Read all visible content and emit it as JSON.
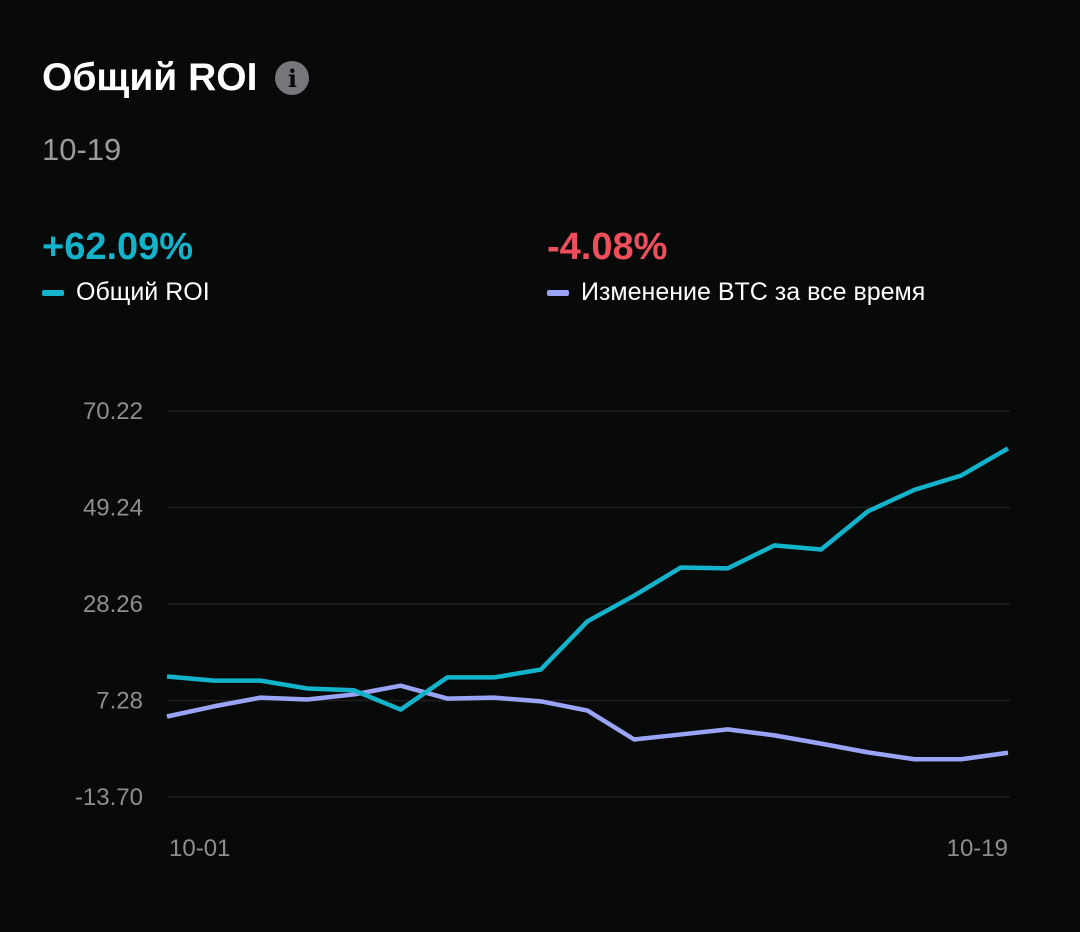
{
  "header": {
    "title": "Общий ROI",
    "info_icon": "info-icon",
    "date": "10-19"
  },
  "stats": [
    {
      "value": "+62.09%",
      "label": "Общий ROI",
      "color": "#13b4cb"
    },
    {
      "value": "-4.08%",
      "label": "Изменение BTC за все время",
      "color": "#ef4f5c"
    }
  ],
  "chart_data": {
    "type": "line",
    "title": "Общий ROI",
    "xlabel": "",
    "ylabel": "",
    "x_tick_labels": [
      "10-01",
      "10-19"
    ],
    "y_ticks": [
      "70.22",
      "49.24",
      "28.26",
      "7.28",
      "-13.70"
    ],
    "ylim": [
      -13.7,
      70.22
    ],
    "grid": true,
    "x": [
      "10-01",
      "10-02",
      "10-03",
      "10-04",
      "10-05",
      "10-06",
      "10-07",
      "10-08",
      "10-09",
      "10-10",
      "10-11",
      "10-12",
      "10-13",
      "10-14",
      "10-15",
      "10-16",
      "10-17",
      "10-18",
      "10-19"
    ],
    "series": [
      {
        "name": "Общий ROI",
        "color": "#13b4cb",
        "values": [
          12.5,
          11.6,
          11.6,
          9.9,
          9.5,
          5.3,
          12.3,
          12.3,
          14.0,
          24.5,
          30.1,
          36.2,
          36.0,
          41.0,
          40.1,
          48.4,
          53.1,
          56.2,
          62.09
        ]
      },
      {
        "name": "Изменение BTC за все время",
        "color": "#9aa3f5",
        "values": [
          3.8,
          6.0,
          7.9,
          7.5,
          8.6,
          10.5,
          7.7,
          7.9,
          7.1,
          5.1,
          -1.2,
          -0.1,
          1.0,
          -0.3,
          -2.1,
          -4.0,
          -5.5,
          -5.5,
          -4.08
        ]
      }
    ]
  }
}
